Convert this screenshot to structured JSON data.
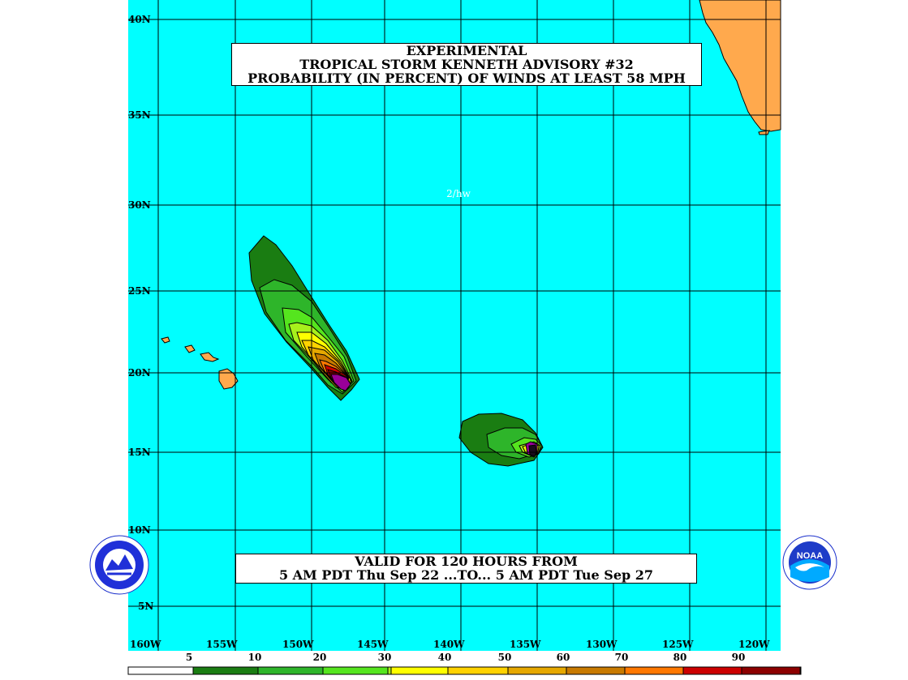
{
  "title": {
    "line1": "EXPERIMENTAL",
    "line2": "TROPICAL STORM KENNETH ADVISORY #32",
    "line3": "PROBABILITY (IN PERCENT) OF WINDS AT LEAST 58 MPH"
  },
  "credit": "2/hw",
  "valid": {
    "line1": "VALID FOR 120 HOURS FROM",
    "line2": "5 AM PDT Thu Sep 22 ...TO... 5 AM PDT Tue Sep 27"
  },
  "lat_labels": [
    "40N",
    "35N",
    "30N",
    "25N",
    "20N",
    "15N",
    "10N",
    "5N"
  ],
  "lon_labels": [
    "160W",
    "155W",
    "150W",
    "145W",
    "140W",
    "135W",
    "130W",
    "125W",
    "120W"
  ],
  "legend": {
    "labels": [
      "5",
      "10",
      "20",
      "30",
      "40",
      "50",
      "60",
      "70",
      "80",
      "90"
    ],
    "colors": [
      "#ffffff",
      "#1a7d12",
      "#2eb52a",
      "#55e51e",
      "#a8f01c",
      "#ffff00",
      "#ffd200",
      "#e6a800",
      "#c87a00",
      "#ff7800",
      "#cc0000",
      "#8c0000",
      "#990099"
    ]
  },
  "colors": {
    "ocean": "#00ffff",
    "land": "#ffa94d",
    "grid": "#000000"
  },
  "logos": {
    "left": "nws-seal",
    "right": "noaa-logo",
    "noaa_text": "NOAA"
  }
}
